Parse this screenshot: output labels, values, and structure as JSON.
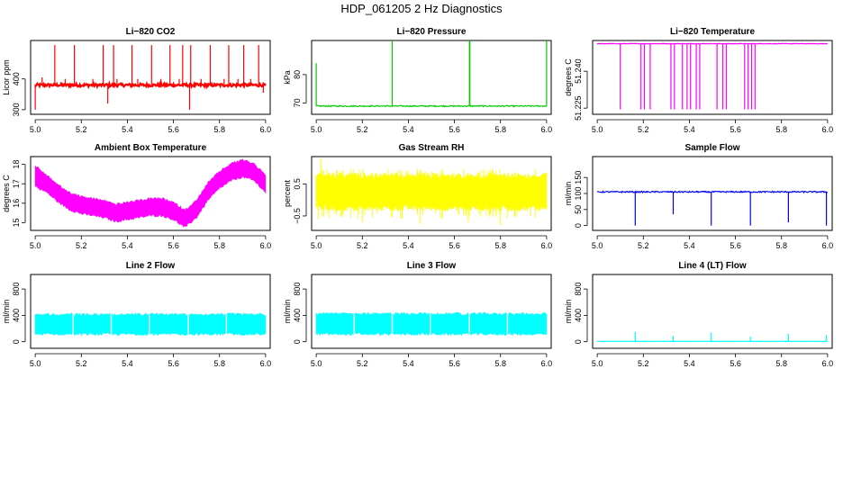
{
  "title": "HDP_061205 2 Hz Diagnostics",
  "chart_data": [
    {
      "id": "co2",
      "type": "line",
      "title": "Li−820 CO2",
      "xlabel": "",
      "ylabel": "Licor ppm",
      "color": "#ff0000",
      "xlim": [
        4.98,
        6.02
      ],
      "ylim": [
        285,
        525
      ],
      "xticks": [
        "5.0",
        "5.2",
        "5.4",
        "5.6",
        "5.8",
        "6.0"
      ],
      "yticks": [
        "300",
        "400"
      ],
      "ytick_values": [
        300,
        400
      ],
      "baseline": 380,
      "noise": 5,
      "spikes": [
        [
          5.0,
          300
        ],
        [
          5.03,
          405
        ],
        [
          5.085,
          510
        ],
        [
          5.13,
          400
        ],
        [
          5.17,
          510
        ],
        [
          5.25,
          400
        ],
        [
          5.295,
          510
        ],
        [
          5.315,
          320
        ],
        [
          5.34,
          510
        ],
        [
          5.355,
          400
        ],
        [
          5.42,
          510
        ],
        [
          5.445,
          400
        ],
        [
          5.505,
          510
        ],
        [
          5.545,
          400
        ],
        [
          5.585,
          510
        ],
        [
          5.625,
          400
        ],
        [
          5.64,
          510
        ],
        [
          5.67,
          300
        ],
        [
          5.675,
          510
        ],
        [
          5.72,
          400
        ],
        [
          5.76,
          510
        ],
        [
          5.82,
          400
        ],
        [
          5.84,
          510
        ],
        [
          5.88,
          400
        ],
        [
          5.905,
          510
        ],
        [
          5.935,
          400
        ],
        [
          5.97,
          510
        ],
        [
          5.99,
          355
        ]
      ],
      "series": [
        {
          "name": "CO2"
        }
      ]
    },
    {
      "id": "pressure",
      "type": "line",
      "title": "Li−820 Pressure",
      "xlabel": "",
      "ylabel": "kPa",
      "color": "#00cc00",
      "xlim": [
        4.98,
        6.02
      ],
      "ylim": [
        66,
        92
      ],
      "xticks": [
        "5.0",
        "5.2",
        "5.4",
        "5.6",
        "5.8",
        "6.0"
      ],
      "yticks": [
        "70",
        "80"
      ],
      "ytick_values": [
        70,
        80
      ],
      "baseline": 68.9,
      "noise": 0.2,
      "spikes": [
        [
          5.0,
          84
        ],
        [
          5.33,
          92
        ],
        [
          5.665,
          92
        ],
        [
          5.667,
          92
        ],
        [
          6.0,
          92
        ]
      ],
      "series": [
        {
          "name": "Pressure"
        }
      ]
    },
    {
      "id": "temperature",
      "type": "line",
      "title": "Li−820 Temperature",
      "xlabel": "",
      "ylabel": "degrees C",
      "color": "#ff00ff",
      "xlim": [
        4.98,
        6.02
      ],
      "ylim": [
        51.2225,
        51.2525
      ],
      "xticks": [
        "5.0",
        "5.2",
        "5.4",
        "5.6",
        "5.8",
        "6.0"
      ],
      "yticks": [
        "51.225",
        "51.240"
      ],
      "ytick_values": [
        51.225,
        51.24
      ],
      "baseline": 51.2512,
      "noise": 0.0001,
      "spikes": [
        [
          5.1,
          51.2245
        ],
        [
          5.19,
          51.2245
        ],
        [
          5.205,
          51.2245
        ],
        [
          5.23,
          51.2245
        ],
        [
          5.32,
          51.2245
        ],
        [
          5.335,
          51.2245
        ],
        [
          5.37,
          51.2245
        ],
        [
          5.39,
          51.2245
        ],
        [
          5.405,
          51.2245
        ],
        [
          5.43,
          51.2245
        ],
        [
          5.445,
          51.2245
        ],
        [
          5.52,
          51.2245
        ],
        [
          5.545,
          51.2245
        ],
        [
          5.56,
          51.2245
        ],
        [
          5.64,
          51.2245
        ],
        [
          5.655,
          51.2245
        ],
        [
          5.67,
          51.2245
        ],
        [
          5.685,
          51.2245
        ]
      ],
      "series": [
        {
          "name": "Temperature"
        }
      ]
    },
    {
      "id": "ambient",
      "type": "line",
      "title": "Ambient Box Temperature",
      "xlabel": "",
      "ylabel": "degrees C",
      "color": "#ff00ff",
      "xlim": [
        4.98,
        6.02
      ],
      "ylim": [
        14.6,
        18.4
      ],
      "xticks": [
        "5.0",
        "5.2",
        "5.4",
        "5.6",
        "5.8",
        "6.0"
      ],
      "yticks": [
        "15",
        "16",
        "17",
        "18"
      ],
      "ytick_values": [
        15,
        16,
        17,
        18
      ],
      "band": [
        [
          5.0,
          17.4,
          0.6
        ],
        [
          5.05,
          17.0,
          0.5
        ],
        [
          5.1,
          16.5,
          0.5
        ],
        [
          5.15,
          16.1,
          0.5
        ],
        [
          5.2,
          15.9,
          0.5
        ],
        [
          5.25,
          15.8,
          0.5
        ],
        [
          5.3,
          15.7,
          0.5
        ],
        [
          5.35,
          15.5,
          0.5
        ],
        [
          5.4,
          15.6,
          0.5
        ],
        [
          5.45,
          15.7,
          0.5
        ],
        [
          5.5,
          15.8,
          0.5
        ],
        [
          5.55,
          15.8,
          0.5
        ],
        [
          5.6,
          15.6,
          0.5
        ],
        [
          5.65,
          15.2,
          0.5
        ],
        [
          5.7,
          15.7,
          0.5
        ],
        [
          5.75,
          16.6,
          0.5
        ],
        [
          5.8,
          17.2,
          0.5
        ],
        [
          5.85,
          17.6,
          0.5
        ],
        [
          5.9,
          17.8,
          0.5
        ],
        [
          5.95,
          17.6,
          0.5
        ],
        [
          6.0,
          17.0,
          0.5
        ]
      ],
      "series": [
        {
          "name": "Ambient"
        }
      ]
    },
    {
      "id": "rh",
      "type": "line",
      "title": "Gas Stream RH",
      "xlabel": "",
      "ylabel": "percent",
      "color": "#ffff00",
      "xlim": [
        4.98,
        6.02
      ],
      "ylim": [
        -0.95,
        1.35
      ],
      "xticks": [
        "5.0",
        "5.2",
        "5.4",
        "5.6",
        "5.8",
        "6.0"
      ],
      "yticks": [
        "−0.5",
        "0.5"
      ],
      "ytick_values": [
        -0.5,
        0.5
      ],
      "band": [
        [
          5.0,
          0.25,
          0.6
        ],
        [
          6.0,
          0.25,
          0.6
        ]
      ],
      "outliers": [
        [
          5.02,
          1.3
        ],
        [
          5.01,
          -0.6
        ],
        [
          5.2,
          -0.7
        ],
        [
          5.45,
          -0.75
        ],
        [
          5.66,
          -0.7
        ],
        [
          5.8,
          -0.8
        ]
      ],
      "series": [
        {
          "name": "RH"
        }
      ]
    },
    {
      "id": "sample_flow",
      "type": "line",
      "title": "Sample Flow",
      "xlabel": "",
      "ylabel": "ml/min",
      "color": "#0000ff",
      "xlim": [
        4.98,
        6.02
      ],
      "ylim": [
        -15,
        215
      ],
      "xticks": [
        "5.0",
        "5.2",
        "5.4",
        "5.6",
        "5.8",
        "6.0"
      ],
      "yticks": [
        "0",
        "50",
        "100",
        "150"
      ],
      "ytick_values": [
        0,
        50,
        100,
        150
      ],
      "baseline": 105,
      "noise": 2,
      "dips": [
        [
          5.165,
          0
        ],
        [
          5.33,
          35
        ],
        [
          5.495,
          0
        ],
        [
          5.665,
          0
        ],
        [
          5.83,
          10
        ],
        [
          5.995,
          0
        ]
      ],
      "series": [
        {
          "name": "Sample Flow"
        }
      ]
    },
    {
      "id": "line2",
      "type": "line",
      "title": "Line 2 Flow",
      "xlabel": "",
      "ylabel": "ml/min",
      "color": "#00ffff",
      "xlim": [
        4.98,
        6.02
      ],
      "ylim": [
        -100,
        1020
      ],
      "xticks": [
        "5.0",
        "5.2",
        "5.4",
        "5.6",
        "5.8",
        "6.0"
      ],
      "yticks": [
        "0",
        "400",
        "800"
      ],
      "ytick_values": [
        0,
        400,
        800
      ],
      "band": [
        [
          5.0,
          265,
          170
        ],
        [
          6.0,
          265,
          170
        ]
      ],
      "gaps": [
        5.165,
        5.33,
        5.495,
        5.665,
        5.83
      ],
      "series": [
        {
          "name": "Line 2"
        }
      ]
    },
    {
      "id": "line3",
      "type": "line",
      "title": "Line 3 Flow",
      "xlabel": "",
      "ylabel": "ml/min",
      "color": "#00ffff",
      "xlim": [
        4.98,
        6.02
      ],
      "ylim": [
        -100,
        1020
      ],
      "xticks": [
        "5.0",
        "5.2",
        "5.4",
        "5.6",
        "5.8",
        "6.0"
      ],
      "yticks": [
        "0",
        "400",
        "800"
      ],
      "ytick_values": [
        0,
        400,
        800
      ],
      "band": [
        [
          5.0,
          270,
          175
        ],
        [
          6.0,
          270,
          175
        ]
      ],
      "gaps": [
        5.165,
        5.33,
        5.495,
        5.665,
        5.83
      ],
      "series": [
        {
          "name": "Line 3"
        }
      ]
    },
    {
      "id": "line4",
      "type": "line",
      "title": "Line 4 (LT) Flow",
      "xlabel": "",
      "ylabel": "ml/min",
      "color": "#00ffff",
      "xlim": [
        4.98,
        6.02
      ],
      "ylim": [
        -100,
        1020
      ],
      "xticks": [
        "5.0",
        "5.2",
        "5.4",
        "5.6",
        "5.8",
        "6.0"
      ],
      "yticks": [
        "0",
        "400",
        "800"
      ],
      "ytick_values": [
        0,
        400,
        800
      ],
      "baseline": 5,
      "noise": 2,
      "spikes": [
        [
          5.165,
          150
        ],
        [
          5.33,
          90
        ],
        [
          5.495,
          140
        ],
        [
          5.665,
          80
        ],
        [
          5.83,
          120
        ],
        [
          5.995,
          100
        ]
      ],
      "series": [
        {
          "name": "Line 4"
        }
      ]
    }
  ]
}
